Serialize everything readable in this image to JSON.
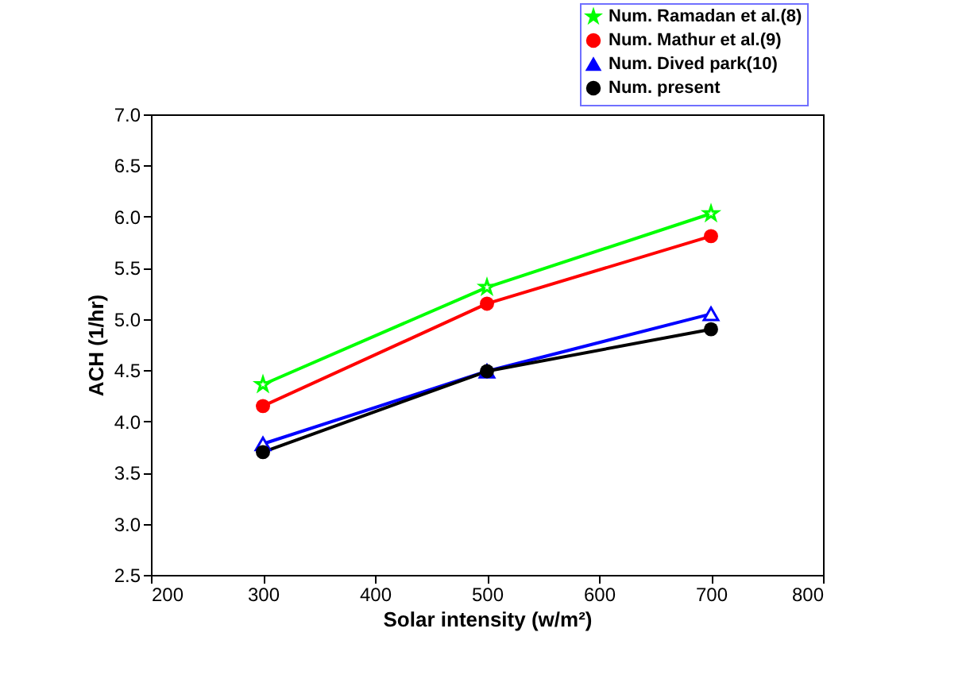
{
  "chart_data": {
    "type": "line",
    "xlabel": "Solar intensity (w/m²)",
    "ylabel": "ACH (1/hr)",
    "x": [
      300,
      500,
      700
    ],
    "series": [
      {
        "name": "Num. Ramadan et al.(8)",
        "color": "#00ff00",
        "marker": "star",
        "values": [
          4.36,
          5.31,
          6.03
        ]
      },
      {
        "name": "Num. Mathur et al.(9)",
        "color": "#ff0000",
        "marker": "circle",
        "values": [
          4.15,
          5.15,
          5.81
        ]
      },
      {
        "name": "Num. Dived park(10)",
        "color": "#0000ff",
        "marker": "triangle",
        "values": [
          3.78,
          4.49,
          5.05
        ]
      },
      {
        "name": "Num. present",
        "color": "#000000",
        "marker": "circle",
        "values": [
          3.7,
          4.49,
          4.9
        ]
      }
    ],
    "xlim": [
      200,
      800
    ],
    "xticks": [
      200,
      300,
      400,
      500,
      600,
      700,
      800
    ],
    "ylim": [
      2.5,
      7.0
    ],
    "yticks": [
      {
        "value": 2.5,
        "label": "2.5"
      },
      {
        "value": 3,
        "label": "3.0"
      },
      {
        "value": 3.5,
        "label": "3.5"
      },
      {
        "value": 4,
        "label": "4.0"
      },
      {
        "value": 4.5,
        "label": "4.5"
      },
      {
        "value": 5,
        "label": "5.0"
      },
      {
        "value": 5.5,
        "label": "5.5"
      },
      {
        "value": 6,
        "label": "6.0"
      },
      {
        "value": 6.5,
        "label": "6.5"
      },
      {
        "value": 7,
        "label": "7.0"
      }
    ],
    "legend": "top right",
    "grid": false,
    "line_style": "solid"
  }
}
